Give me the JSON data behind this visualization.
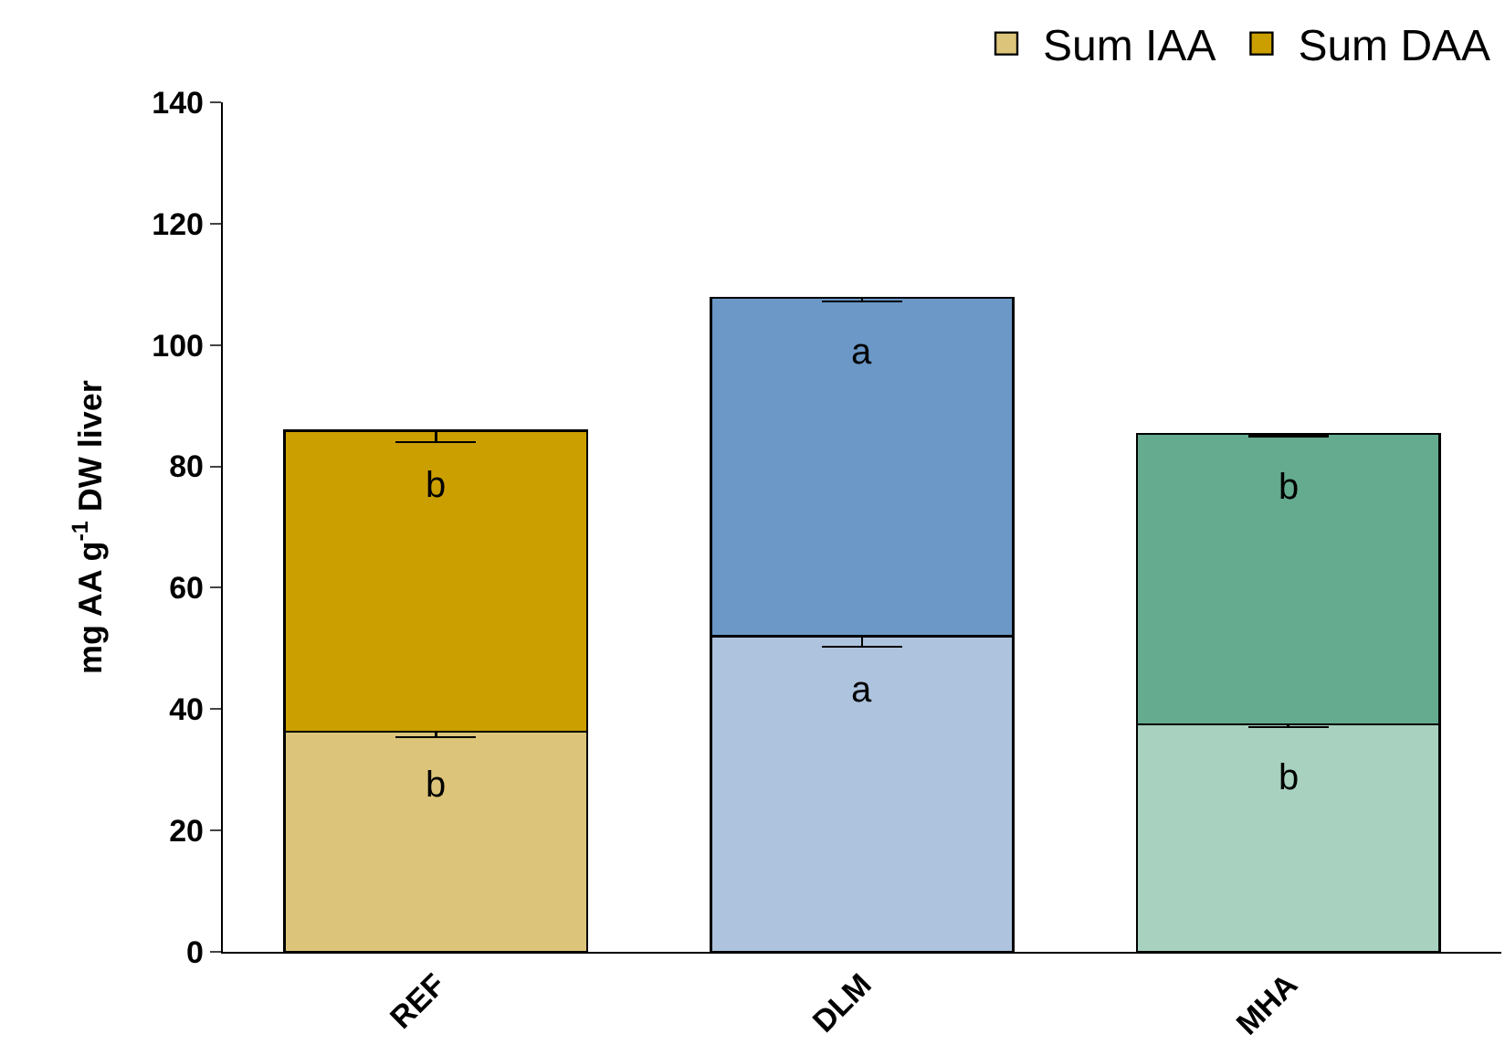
{
  "chart_data": {
    "type": "bar",
    "stacked": true,
    "ylabel": "mg AA g$^{-1}$ DW liver",
    "categories": [
      "REF",
      "DLM",
      "MHA"
    ],
    "series": [
      {
        "name": "Sum IAA",
        "colors": [
          "#dcc47a",
          "#aec3de",
          "#a8d2bf"
        ],
        "values": [
          36.3,
          52.0,
          37.5
        ],
        "errors": [
          [
            35.4,
            36.3
          ],
          [
            50.3,
            52.0
          ],
          [
            37.0,
            37.5
          ]
        ]
      },
      {
        "name": "Sum DAA",
        "colors": [
          "#cc9f00",
          "#6b98c6",
          "#64ab8f"
        ],
        "values": [
          49.6,
          55.8,
          47.9
        ],
        "errors": [
          [
            84.0,
            85.9
          ],
          [
            107.2,
            107.8
          ],
          [
            85.0,
            85.4
          ]
        ]
      }
    ],
    "ylim": [
      0,
      140
    ],
    "yticks": [
      0,
      20,
      40,
      60,
      80,
      100,
      120,
      140
    ],
    "legend": "top right",
    "annotations": [
      "b",
      "a",
      "b",
      "b",
      "a",
      "b"
    ]
  }
}
